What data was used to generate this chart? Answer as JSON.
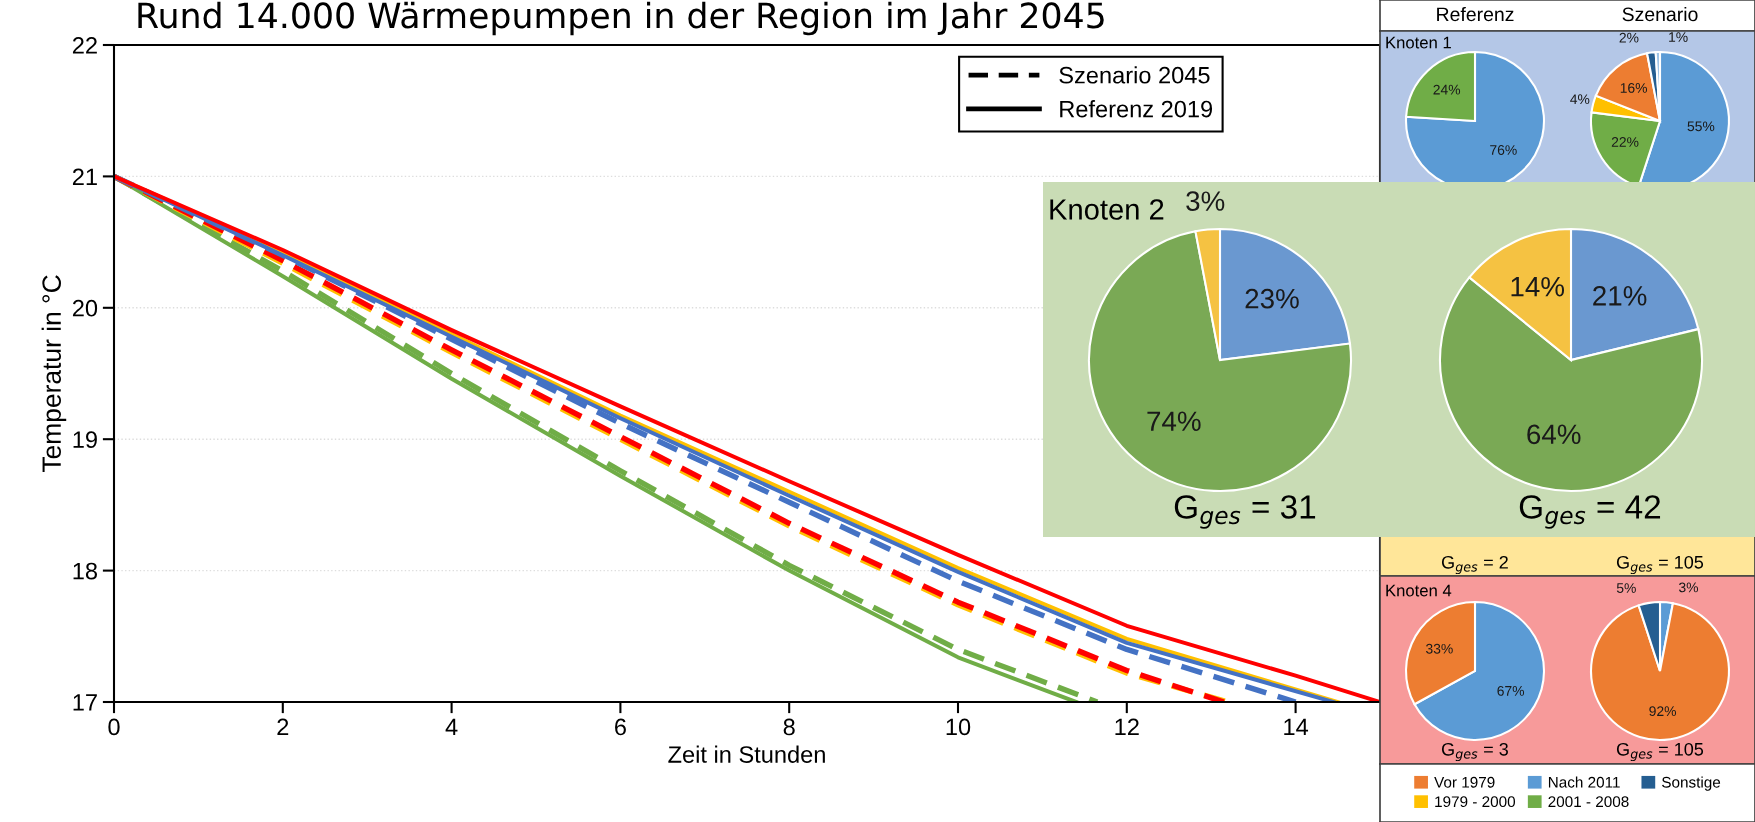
{
  "chart_data": [
    {
      "type": "line",
      "title": "Rund 14.000 Wärmepumpen in der Region im Jahr 2045",
      "xlabel": "Zeit in Stunden",
      "ylabel": "Temperatur in °C",
      "xlim": [
        0,
        15
      ],
      "ylim": [
        17,
        22
      ],
      "xticks": [
        0,
        2,
        4,
        6,
        8,
        10,
        12,
        14
      ],
      "yticks": [
        17,
        18,
        19,
        20,
        21,
        22
      ],
      "grid": "y",
      "legend": "top right",
      "series": [
        {
          "color": "#70ad47",
          "line_style": "solid",
          "x": [
            0,
            2,
            4,
            6,
            8,
            10,
            11.4
          ],
          "values": [
            21,
            20.24,
            19.46,
            18.72,
            18.0,
            17.34,
            17
          ]
        },
        {
          "color": "#70ad47",
          "line_style": "dashed",
          "x": [
            0,
            2,
            4,
            6,
            8,
            10,
            11.65
          ],
          "values": [
            21,
            20.28,
            19.5,
            18.76,
            18.04,
            17.4,
            17
          ]
        },
        {
          "color": "#ffc000",
          "line_style": "dashed",
          "x": [
            0,
            2,
            4,
            6,
            8,
            10,
            12,
            13.2
          ],
          "values": [
            21,
            20.34,
            19.66,
            19.0,
            18.34,
            17.74,
            17.22,
            17
          ]
        },
        {
          "color": "#ff0000",
          "line_style": "dashed",
          "x": [
            0,
            2,
            4,
            6,
            8,
            10,
            12,
            13.15
          ],
          "values": [
            21,
            20.36,
            19.68,
            19.02,
            18.36,
            17.76,
            17.24,
            17
          ]
        },
        {
          "color": "#4472c4",
          "line_style": "dashed",
          "x": [
            0,
            2,
            4,
            6,
            8,
            10,
            12,
            14
          ],
          "values": [
            21,
            20.4,
            19.76,
            19.12,
            18.52,
            17.92,
            17.4,
            17
          ]
        },
        {
          "color": "#ffc000",
          "line_style": "solid",
          "x": [
            0,
            2,
            4,
            6,
            8,
            10,
            12,
            14.5
          ],
          "values": [
            21,
            20.42,
            19.8,
            19.18,
            18.6,
            18.02,
            17.48,
            17
          ]
        },
        {
          "color": "#4472c4",
          "line_style": "solid",
          "x": [
            0,
            2,
            4,
            6,
            8,
            10,
            12,
            14.45
          ],
          "values": [
            21,
            20.4,
            19.78,
            19.16,
            18.57,
            17.99,
            17.45,
            17
          ]
        },
        {
          "color": "#ff0000",
          "line_style": "solid",
          "x": [
            0,
            2,
            4,
            6,
            8,
            10,
            12,
            14,
            15
          ],
          "values": [
            21,
            20.44,
            19.83,
            19.25,
            18.68,
            18.12,
            17.58,
            17.2,
            17
          ]
        },
        {
          "name": "Szenario 2045",
          "color": "#000000",
          "line_style": "dashed"
        },
        {
          "name": "Referenz 2019",
          "color": "#000000",
          "line_style": "solid"
        }
      ]
    },
    {
      "type": "pie",
      "title": "Knoten 1",
      "subtitle": "Referenz",
      "categories": [
        null,
        null
      ],
      "values": [
        76,
        24
      ],
      "colors": [
        "#5b9bd5",
        "#70ad47"
      ],
      "value_labels": [
        "76%",
        "24%"
      ]
    },
    {
      "type": "pie",
      "subtitle": "Szenario",
      "legend": "bottom",
      "categories": [
        "Nach 2011",
        "2001 - 2008",
        "1979 - 2000",
        "Vor 1979",
        "Sonstige",
        null
      ],
      "values": [
        55,
        22,
        4,
        16,
        2,
        1
      ],
      "colors": [
        "#5b9bd5",
        "#70ad47",
        "#ffc000",
        "#ed7d31",
        "#255e91",
        "#9dc3e6"
      ],
      "value_labels": [
        "55%",
        "22%",
        "4%",
        "16%",
        "2%",
        "1%"
      ]
    },
    {
      "type": "pie",
      "title": "Knoten 2",
      "categories": [
        null,
        null,
        null
      ],
      "values": [
        23,
        74,
        3
      ],
      "colors": [
        "#6a98d0",
        "#7aa955",
        "#f5c242"
      ],
      "value_labels": [
        "23%",
        "74%",
        "3%"
      ],
      "annotations": [
        "G$_{ges}$ = 31"
      ]
    },
    {
      "type": "pie",
      "categories": [
        null,
        null,
        null
      ],
      "values": [
        21,
        64,
        14
      ],
      "colors": [
        "#6a98d0",
        "#7aa955",
        "#f5c242"
      ],
      "value_labels": [
        "21%",
        "64%",
        "14%"
      ],
      "annotations": [
        "G$_{ges}$ = 42"
      ]
    },
    {
      "type": "other",
      "annotations": [
        "G$_{ges}$ = 2",
        "G$_{ges}$ = 105"
      ]
    },
    {
      "type": "pie",
      "title": "Knoten 4",
      "categories": [
        null,
        null
      ],
      "values": [
        67,
        33
      ],
      "colors": [
        "#5b9bd5",
        "#ed7d31"
      ],
      "value_labels": [
        "67%",
        "33%"
      ],
      "annotations": [
        "G$_{ges}$ = 3"
      ]
    },
    {
      "type": "pie",
      "categories": [
        null,
        null,
        null
      ],
      "values": [
        3,
        92,
        5
      ],
      "colors": [
        "#5b9bd5",
        "#ed7d31",
        "#255e91"
      ],
      "value_labels": [
        "3%",
        "92%",
        "5%"
      ],
      "annotations": [
        "G$_{ges}$ = 105"
      ]
    }
  ]
}
